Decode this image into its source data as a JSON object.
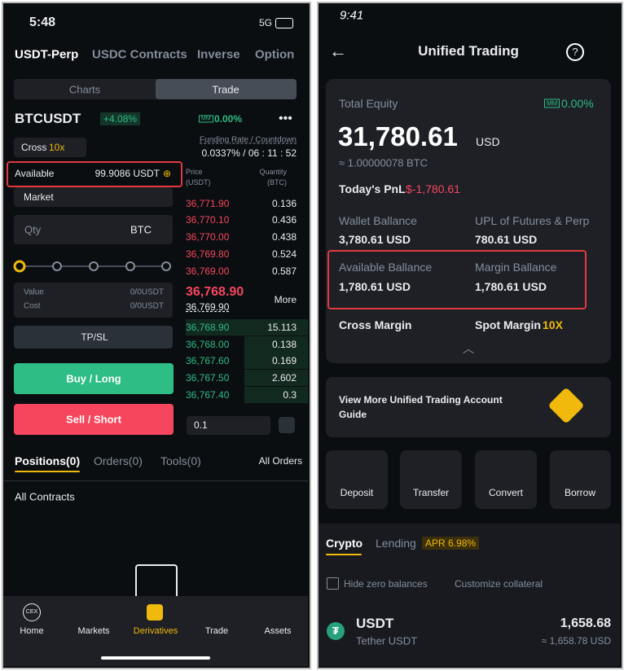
{
  "left": {
    "status": {
      "time": "5:48",
      "network": "5G"
    },
    "tabs": [
      "USDT-Perp",
      "USDC Contracts",
      "Inverse",
      "Option"
    ],
    "toggle": [
      "Charts",
      "Trade"
    ],
    "symbol": {
      "name": "BTCUSDT",
      "change": "+4.08%",
      "mm": "MM",
      "mm_value": "0.00%"
    },
    "funding": {
      "label": "Funding Rate / Countdown",
      "value": "0.0337% / 06 : 11 : 52"
    },
    "margin_mode": {
      "mode": "Cross",
      "leverage": "10x"
    },
    "available": {
      "label": "Available",
      "value": "99.9086 USDT"
    },
    "book_header": {
      "price": "Price",
      "price_unit": "(USDT)",
      "qty": "Quantity",
      "qty_unit": "(BTC)"
    },
    "order_type": "Market",
    "qty": {
      "placeholder": "Qty",
      "unit": "BTC"
    },
    "value_cost": {
      "value_label": "Value",
      "value": "0/0USDT",
      "cost_label": "Cost",
      "cost": "0/0USDT"
    },
    "tpsl": "TP/SL",
    "buy": "Buy / Long",
    "sell": "Sell / Short",
    "asks": [
      [
        "36,771.90",
        "0.136"
      ],
      [
        "36,770.10",
        "0.436"
      ],
      [
        "36,770.00",
        "0.438"
      ],
      [
        "36,769.80",
        "0.524"
      ],
      [
        "36,769.00",
        "0.587"
      ]
    ],
    "mid": {
      "last": "36,768.90",
      "mark": "36,769.90",
      "more": "More"
    },
    "bids": [
      [
        "36,768.90",
        "15.113"
      ],
      [
        "36,768.00",
        "0.138"
      ],
      [
        "36,767.60",
        "0.169"
      ],
      [
        "36,767.50",
        "2.602"
      ],
      [
        "36,767.40",
        "0.3"
      ]
    ],
    "precision": "0.1",
    "bottom_tabs": [
      "Positions(0)",
      "Orders(0)",
      "Tools(0)"
    ],
    "all_orders": "All Orders",
    "filter": "All Contracts",
    "nav": {
      "cex": "CEX",
      "items": [
        "Home",
        "Markets",
        "Derivatives",
        "Trade",
        "Assets"
      ]
    }
  },
  "right": {
    "status": {
      "time": "9:41"
    },
    "title": "Unified Trading",
    "equity": {
      "label": "Total Equity",
      "mm": "MM",
      "mm_value": "0.00%",
      "value": "31,780.61",
      "currency": "USD",
      "btc": "≈ 1.00000078 BTC"
    },
    "pnl": {
      "label": "Today's PnL",
      "value": "$-1,780.61"
    },
    "wallet": {
      "label": "Wallet Ballance",
      "value": "3,780.61 USD"
    },
    "upl": {
      "label": "UPL of Futures & Perp",
      "value": "780.61 USD"
    },
    "available": {
      "label": "Available Ballance",
      "value": "1,780.61 USD"
    },
    "margin": {
      "label": "Margin Ballance",
      "value": "1,780.61 USD"
    },
    "cross_margin": "Cross Margin",
    "spot_margin": "Spot Margin",
    "spot_leverage": "10X",
    "guide": "View More Unified Trading Account Guide",
    "actions": [
      "Deposit",
      "Transfer",
      "Convert",
      "Borrow"
    ],
    "tabs": {
      "crypto": "Crypto",
      "lending": "Lending",
      "apr": "APR 6.98%"
    },
    "hide_zero": "Hide zero balances",
    "customize": "Customize collateral",
    "asset": {
      "symbol": "USDT",
      "name": "Tether USDT",
      "amount": "1,658.68",
      "usd": "≈ 1,658.78 USD"
    }
  }
}
